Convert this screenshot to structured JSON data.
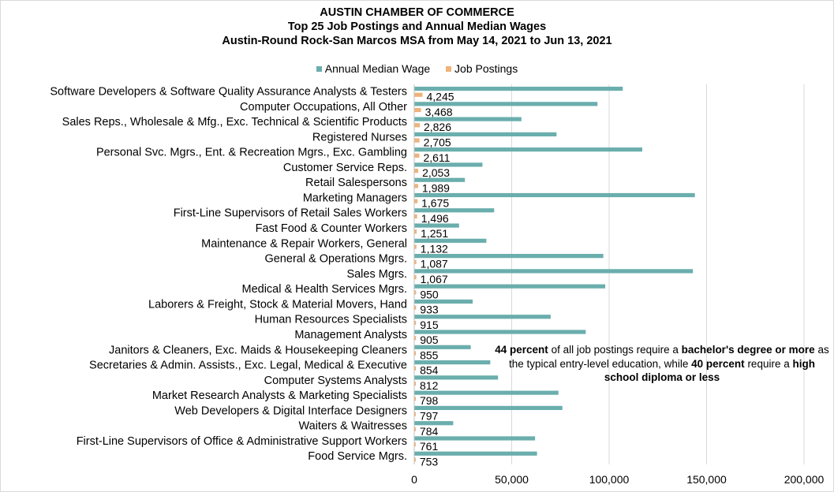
{
  "chart_data": {
    "type": "bar",
    "orientation": "horizontal",
    "title": "AUSTIN CHAMBER OF COMMERCE",
    "subtitle_1": "Top 25 Job Postings and Annual Median Wages",
    "subtitle_2": "Austin-Round Rock-San Marcos MSA from May 14, 2021 to Jun 13, 2021",
    "categories": [
      "Software Developers & Software Quality Assurance Analysts & Testers",
      "Computer Occupations, All Other",
      "Sales Reps., Wholesale & Mfg., Exc. Technical & Scientific Products",
      "Registered Nurses",
      "Personal Svc. Mgrs., Ent. & Recreation Mgrs., Exc. Gambling",
      "Customer Service Reps.",
      "Retail Salespersons",
      "Marketing Managers",
      "First-Line Supervisors of Retail Sales Workers",
      "Fast Food & Counter Workers",
      "Maintenance & Repair Workers, General",
      "General & Operations Mgrs.",
      "Sales Mgrs.",
      "Medical & Health Services Mgrs.",
      "Laborers & Freight, Stock & Material Movers, Hand",
      "Human Resources Specialists",
      "Management Analysts",
      "Janitors & Cleaners, Exc. Maids & Housekeeping Cleaners",
      "Secretaries & Admin. Assists., Exc. Legal, Medical & Executive",
      "Computer Systems Analysts",
      "Market Research Analysts & Marketing Specialists",
      "Web Developers & Digital Interface Designers",
      "Waiters & Waitresses",
      "First-Line Supervisors of Office & Administrative Support Workers",
      "Food Service Mgrs."
    ],
    "series": [
      {
        "name": "Annual Median Wage",
        "color": "#6aaead",
        "values": [
          107000,
          94000,
          55000,
          73000,
          117000,
          35000,
          26000,
          144000,
          41000,
          23000,
          37000,
          97000,
          143000,
          98000,
          30000,
          70000,
          88000,
          29000,
          39000,
          43000,
          74000,
          76000,
          20000,
          62000,
          63000
        ]
      },
      {
        "name": "Job Postings",
        "color": "#f0b27a",
        "values": [
          4245,
          3468,
          2826,
          2705,
          2611,
          2053,
          1989,
          1675,
          1496,
          1251,
          1132,
          1087,
          1067,
          950,
          933,
          915,
          905,
          855,
          854,
          812,
          798,
          797,
          784,
          761,
          753
        ],
        "labels": [
          "4,245",
          "3,468",
          "2,826",
          "2,705",
          "2,611",
          "2,053",
          "1,989",
          "1,675",
          "1,496",
          "1,251",
          "1,132",
          "1,087",
          "1,067",
          "950",
          "933",
          "915",
          "905",
          "855",
          "854",
          "812",
          "798",
          "797",
          "784",
          "761",
          "753"
        ]
      }
    ],
    "xlim": [
      0,
      200000
    ],
    "x_ticks": [
      0,
      50000,
      100000,
      150000,
      200000
    ],
    "x_tick_labels": [
      "0",
      "50,000",
      "100,000",
      "150,000",
      "200,000"
    ],
    "grid": "vertical",
    "legend_position": "top"
  },
  "note": {
    "part1_bold": "44 percent",
    "part2": " of all job postings require a ",
    "part3_bold": "bachelor's degree or more",
    "part4": " as the typical entry-level education, while ",
    "part5_bold": "40 percent",
    "part6": " require a ",
    "part7_bold": "high school diploma or less"
  }
}
